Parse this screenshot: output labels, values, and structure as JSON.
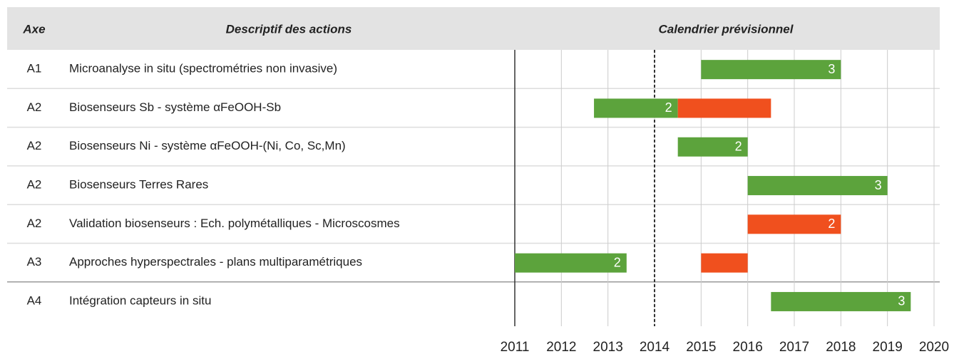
{
  "chart_data": {
    "type": "gantt",
    "headers": [
      "Axe",
      "Descriptif des actions",
      "Calendrier prévisionnel"
    ],
    "rows": [
      {
        "axe": "A1",
        "label": "Microanalyse in situ (spectrométries non invasive)",
        "bars": [
          {
            "start": 2015,
            "end": 2018,
            "color": "#5ca33c",
            "label": 3
          }
        ]
      },
      {
        "axe": "A2",
        "label": "Biosenseurs Sb - système αFeOOH-Sb",
        "bars": [
          {
            "start": 2012.7,
            "end": 2014.5,
            "color": "#5ca33c",
            "label": 2
          },
          {
            "start": 2014.5,
            "end": 2016.5,
            "color": "#f0501e"
          }
        ]
      },
      {
        "axe": "A2",
        "label": "Biosenseurs Ni - système αFeOOH-(Ni, Co, Sc,Mn)",
        "bars": [
          {
            "start": 2014.5,
            "end": 2016,
            "color": "#5ca33c",
            "label": 2
          }
        ]
      },
      {
        "axe": "A2",
        "label": "Biosenseurs Terres Rares",
        "bars": [
          {
            "start": 2016,
            "end": 2019,
            "color": "#5ca33c",
            "label": 3
          }
        ]
      },
      {
        "axe": "A2",
        "label": "Validation biosenseurs  : Ech. polymétalliques - Microscosmes",
        "bars": [
          {
            "start": 2016,
            "end": 2018,
            "color": "#f0501e",
            "label": 2
          }
        ]
      },
      {
        "axe": "A3",
        "label": "Approches hyperspectrales - plans multiparamétriques",
        "bars": [
          {
            "start": 2011,
            "end": 2013.4,
            "color": "#5ca33c",
            "label": 2
          },
          {
            "start": 2015,
            "end": 2016,
            "color": "#f0501e"
          }
        ]
      },
      {
        "axe": "A4",
        "label": "Intégration capteurs in situ",
        "bars": [
          {
            "start": 2016.5,
            "end": 2019.5,
            "color": "#5ca33c",
            "label": 3
          }
        ]
      }
    ],
    "xlim": [
      2011,
      2020
    ],
    "xticks": [
      2011,
      2012,
      2013,
      2014,
      2015,
      2016,
      2017,
      2018,
      2019,
      2020
    ],
    "reference_line": 2014,
    "grid": true
  }
}
